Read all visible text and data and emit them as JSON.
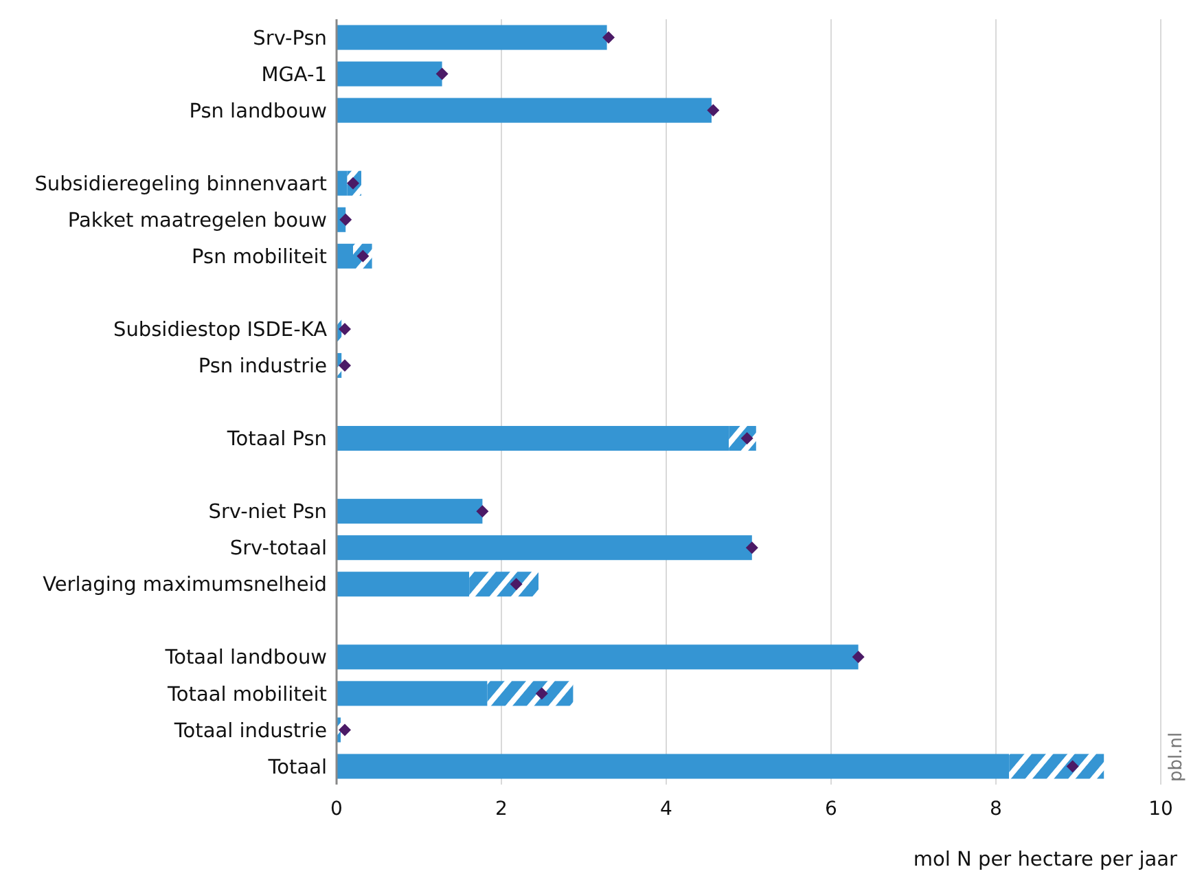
{
  "chart_data": {
    "type": "bar",
    "orientation": "horizontal",
    "stacked": true,
    "categories": [
      "Srv-Psn",
      "MGA-1",
      "Psn landbouw",
      null,
      "Subsidieregeling binnenvaart",
      "Pakket maatregelen bouw",
      "Psn mobiliteit",
      null,
      "Subsidiestop ISDE-KA",
      "Psn industrie",
      null,
      "Totaal Psn",
      null,
      "Srv-niet Psn",
      "Srv-totaal",
      "Verlaging maximumsnelheid",
      null,
      "Totaal landbouw",
      "Totaal mobiliteit",
      "Totaal industrie",
      "Totaal"
    ],
    "series": [
      {
        "color": "#3595d3",
        "values": [
          3.28,
          1.28,
          4.55,
          null,
          0.13,
          0.11,
          0.2,
          null,
          0,
          0,
          null,
          4.76,
          null,
          1.77,
          5.04,
          1.61,
          null,
          6.33,
          1.83,
          0,
          8.16
        ]
      },
      {
        "color": "#3595d3",
        "values": [
          0,
          0,
          0,
          null,
          0.17,
          0,
          0.23,
          null,
          0.06,
          0.06,
          null,
          0.33,
          null,
          0,
          0,
          0.84,
          null,
          0,
          1.04,
          0.05,
          1.15
        ]
      },
      {
        "type": "scatter",
        "marker": "diamond",
        "color": "#4b1a66",
        "x": [
          "Srv-Psn",
          "MGA-1",
          "Psn landbouw",
          null,
          "Subsidieregeling binnenvaart",
          "Pakket maatregelen bouw",
          "Psn mobiliteit",
          null,
          "Subsidiestop ISDE-KA",
          "Psn industrie",
          null,
          "Totaal Psn",
          null,
          "Srv-niet Psn",
          "Srv-totaal",
          "Verlaging maximumsnelheid",
          null,
          "Totaal landbouw",
          "Totaal mobiliteit",
          "Totaal industrie",
          "Totaal"
        ],
        "values": [
          3.3,
          1.28,
          4.57,
          null,
          0.2,
          0.11,
          0.32,
          null,
          0.1,
          0.1,
          null,
          4.98,
          null,
          1.77,
          5.04,
          2.18,
          null,
          6.33,
          2.49,
          0.1,
          8.93
        ]
      }
    ],
    "xlim": [
      0,
      10
    ],
    "xticks": [
      0,
      2,
      4,
      6,
      8,
      10
    ],
    "grid": "x",
    "xlabel": "mol N per hectare per jaar",
    "annotations": [
      "pbl.nl"
    ]
  }
}
